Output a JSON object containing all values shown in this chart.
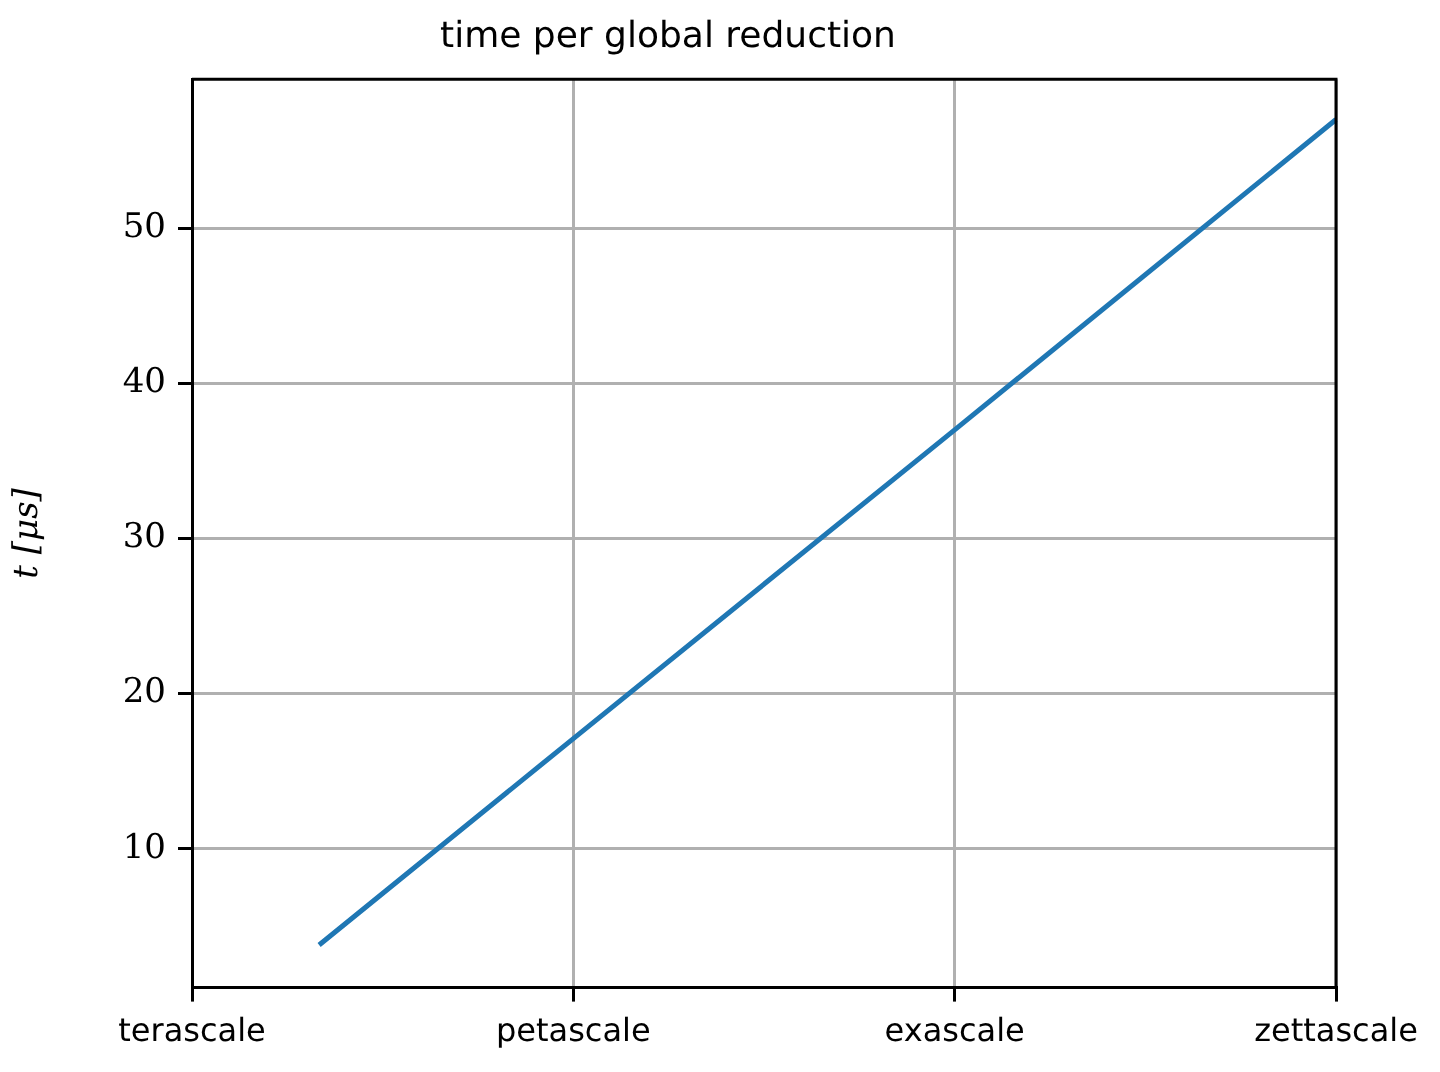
{
  "chart_data": {
    "type": "line",
    "title": "time per global reduction",
    "ylabel": "t [μs]",
    "categories": [
      "terascale",
      null,
      null,
      "petascale",
      null,
      null,
      "exascale",
      null,
      null,
      "zettascale"
    ],
    "series": [
      {
        "color": "#1f77b4",
        "values": [
          null,
          3.8,
          null,
          17.1,
          null,
          null,
          37.0,
          null,
          null,
          57.0
        ]
      }
    ],
    "ylim": [
      1.05,
      59.6
    ],
    "yticks": [
      10,
      20,
      30,
      40,
      50
    ],
    "grid": true,
    "legend": false,
    "marker": "none",
    "line_style": "solid"
  }
}
